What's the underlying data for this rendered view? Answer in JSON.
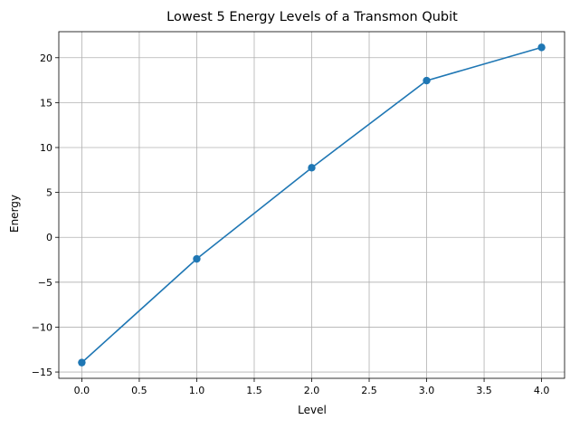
{
  "chart_data": {
    "type": "line",
    "title": "Lowest 5 Energy Levels of a Transmon Qubit",
    "xlabel": "Level",
    "ylabel": "Energy",
    "x": [
      0,
      1,
      2,
      3,
      4
    ],
    "series": [
      {
        "values": [
          -13.95,
          -2.4,
          7.75,
          17.45,
          21.15
        ],
        "color": "#1f77b4",
        "marker": "circle"
      }
    ],
    "xlim": [
      -0.2,
      4.2
    ],
    "ylim": [
      -15.7,
      22.9
    ],
    "xticks": [
      0.0,
      0.5,
      1.0,
      1.5,
      2.0,
      2.5,
      3.0,
      3.5,
      4.0
    ],
    "xtick_labels": [
      "0.0",
      "0.5",
      "1.0",
      "1.5",
      "2.0",
      "2.5",
      "3.0",
      "3.5",
      "4.0"
    ],
    "yticks": [
      -15,
      -10,
      -5,
      0,
      5,
      10,
      15,
      20
    ],
    "ytick_labels": [
      "−15",
      "−10",
      "−5",
      "0",
      "5",
      "10",
      "15",
      "20"
    ],
    "grid": true
  }
}
